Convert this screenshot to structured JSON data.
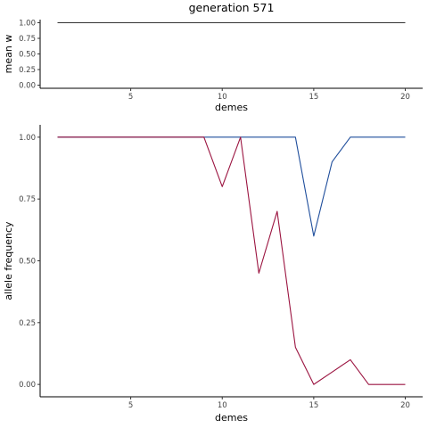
{
  "chart_data": [
    {
      "type": "line",
      "title": "generation 571",
      "xlabel": "demes",
      "ylabel": "mean w",
      "xlim": [
        0.05,
        20.95
      ],
      "ylim": [
        -0.05,
        1.05
      ],
      "x_ticks": [
        5,
        10,
        15,
        20
      ],
      "y_ticks": [
        0.0,
        0.25,
        0.5,
        0.75,
        1.0
      ],
      "x_tick_labels": [
        "5",
        "10",
        "15",
        "20"
      ],
      "y_tick_labels": [
        "0.00",
        "0.25",
        "0.50",
        "0.75",
        "1.00"
      ],
      "grid": false,
      "series": [
        {
          "color": "#333333",
          "x": [
            1,
            2,
            3,
            4,
            5,
            6,
            7,
            8,
            9,
            10,
            11,
            12,
            13,
            14,
            15,
            16,
            17,
            18,
            19,
            20
          ],
          "values": [
            1,
            1,
            1,
            1,
            1,
            1,
            1,
            1,
            1,
            1,
            1,
            1,
            1,
            1,
            1,
            1,
            1,
            1,
            1,
            1
          ]
        }
      ]
    },
    {
      "type": "line",
      "xlabel": "demes",
      "ylabel": "allele frequency",
      "xlim": [
        0.05,
        20.95
      ],
      "ylim": [
        -0.05,
        1.05
      ],
      "x_ticks": [
        5,
        10,
        15,
        20
      ],
      "y_ticks": [
        0.0,
        0.25,
        0.5,
        0.75,
        1.0
      ],
      "x_tick_labels": [
        "5",
        "10",
        "15",
        "20"
      ],
      "y_tick_labels": [
        "0.00",
        "0.25",
        "0.50",
        "0.75",
        "1.00"
      ],
      "grid": false,
      "series": [
        {
          "color": "#1f4e9c",
          "x": [
            1,
            2,
            3,
            4,
            5,
            6,
            7,
            8,
            9,
            10,
            11,
            12,
            13,
            14,
            15,
            16,
            17,
            18,
            19,
            20
          ],
          "values": [
            1,
            1,
            1,
            1,
            1,
            1,
            1,
            1,
            1,
            1,
            1,
            1,
            1,
            1,
            0.6,
            0.9,
            1,
            1,
            1,
            1
          ]
        },
        {
          "color": "#9b1440",
          "x": [
            1,
            2,
            3,
            4,
            5,
            6,
            7,
            8,
            9,
            10,
            11,
            12,
            13,
            14,
            15,
            16,
            17,
            18,
            19,
            20
          ],
          "values": [
            1,
            1,
            1,
            1,
            1,
            1,
            1,
            1,
            1,
            0.8,
            1,
            0.45,
            0.7,
            0.15,
            0,
            0.05,
            0.1,
            0,
            0,
            0
          ]
        }
      ]
    }
  ]
}
